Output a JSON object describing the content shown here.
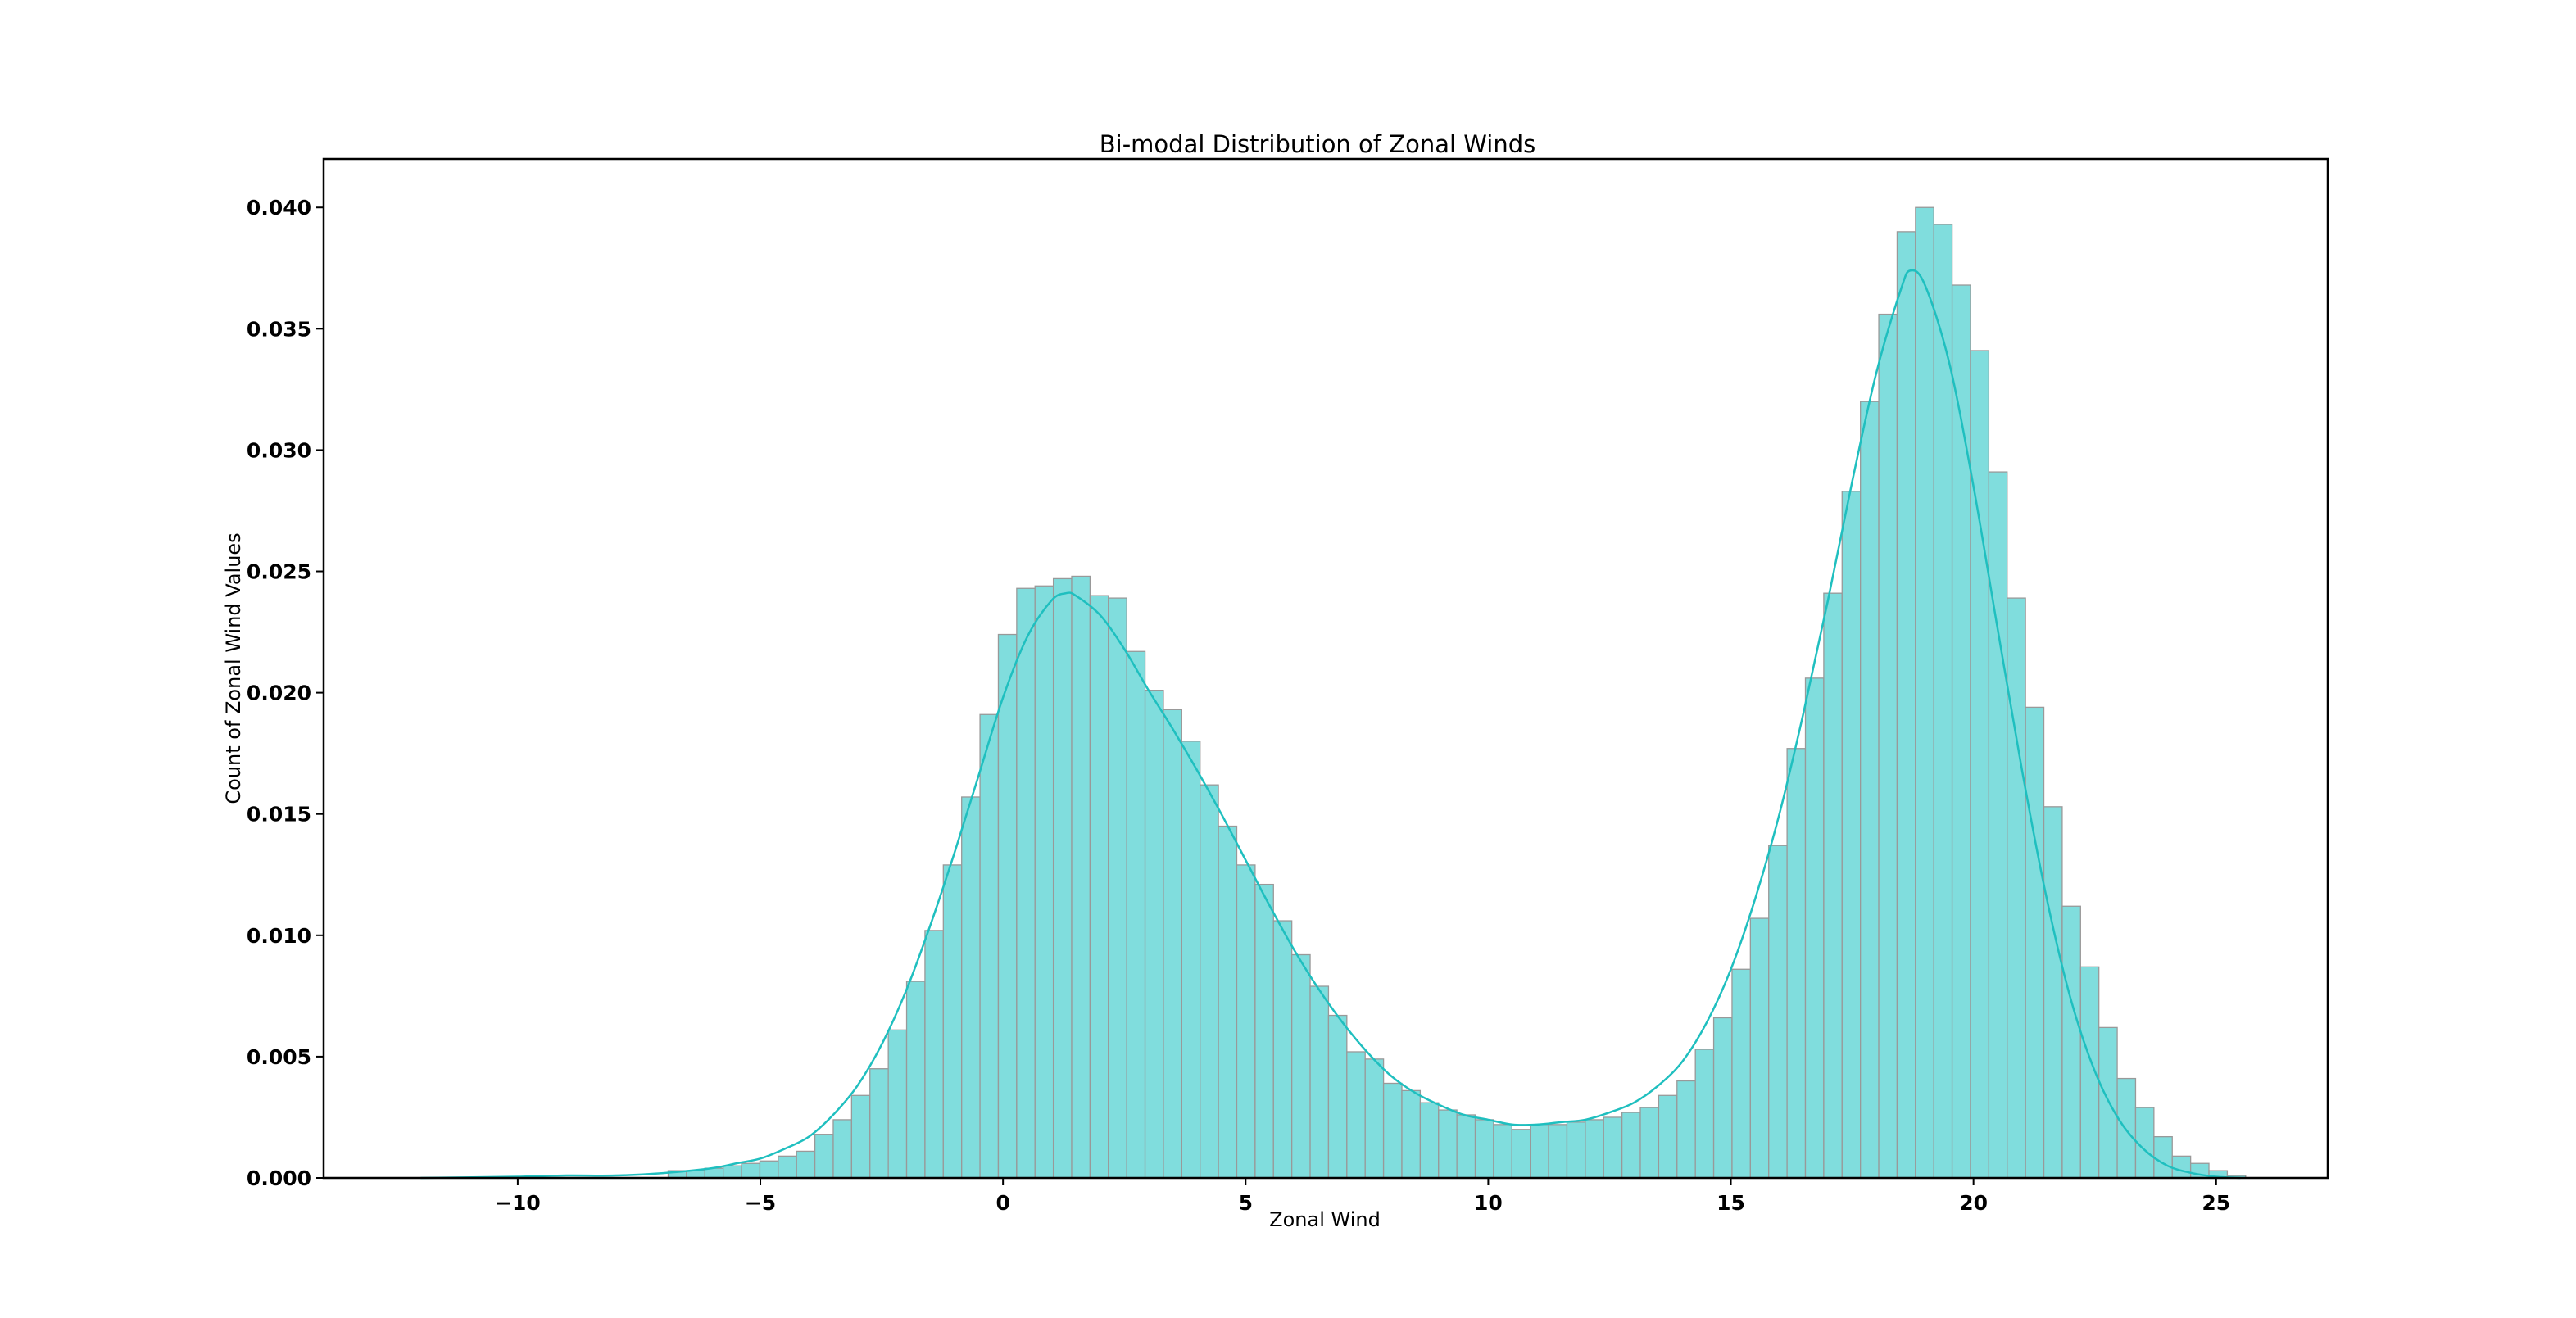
{
  "chart_data": {
    "type": "bar",
    "title": "Bi-modal Distribution of Zonal Winds",
    "xlabel": "Zonal Wind",
    "ylabel": "Count of Zonal Wind Values",
    "xlim": [
      -14.0,
      27.3
    ],
    "ylim": [
      0.0,
      0.042
    ],
    "xticks": [
      -10,
      -5,
      0,
      5,
      10,
      15,
      20,
      25
    ],
    "xtick_labels": [
      "−10",
      "−5",
      "0",
      "5",
      "10",
      "15",
      "20",
      "25"
    ],
    "yticks": [
      0.0,
      0.005,
      0.01,
      0.015,
      0.02,
      0.025,
      0.03,
      0.035,
      0.04
    ],
    "ytick_labels": [
      "0.000",
      "0.005",
      "0.010",
      "0.015",
      "0.020",
      "0.025",
      "0.030",
      "0.035",
      "0.040"
    ],
    "grid": false,
    "bin_start": -6.9,
    "bin_width": 0.378,
    "values": [
      0.0003,
      0.0003,
      0.0004,
      0.0005,
      0.0006,
      0.0007,
      0.0009,
      0.0011,
      0.0018,
      0.0024,
      0.0034,
      0.0045,
      0.0061,
      0.0081,
      0.0102,
      0.0129,
      0.0157,
      0.0191,
      0.0224,
      0.0243,
      0.0244,
      0.0247,
      0.0248,
      0.024,
      0.0239,
      0.0217,
      0.0201,
      0.0193,
      0.018,
      0.0162,
      0.0145,
      0.0129,
      0.0121,
      0.0106,
      0.0092,
      0.0079,
      0.0067,
      0.0052,
      0.0049,
      0.0039,
      0.0036,
      0.0031,
      0.0028,
      0.0026,
      0.0024,
      0.0022,
      0.002,
      0.0022,
      0.0022,
      0.0023,
      0.0024,
      0.0025,
      0.0027,
      0.0029,
      0.0034,
      0.004,
      0.0053,
      0.0066,
      0.0086,
      0.0107,
      0.0137,
      0.0177,
      0.0206,
      0.0241,
      0.0283,
      0.032,
      0.0356,
      0.039,
      0.04,
      0.0393,
      0.0368,
      0.0341,
      0.0291,
      0.0239,
      0.0194,
      0.0153,
      0.0112,
      0.0087,
      0.0062,
      0.0041,
      0.0029,
      0.0017,
      0.0009,
      0.0006,
      0.0003,
      0.0001
    ],
    "kde": {
      "x": [
        -12.0,
        -10.0,
        -9.0,
        -8.0,
        -7.0,
        -6.0,
        -5.5,
        -5.0,
        -4.5,
        -4.0,
        -3.5,
        -3.0,
        -2.5,
        -2.0,
        -1.5,
        -1.0,
        -0.5,
        0.0,
        0.5,
        1.0,
        1.3,
        1.5,
        2.0,
        2.5,
        3.0,
        3.5,
        4.0,
        4.5,
        5.0,
        5.5,
        6.0,
        6.5,
        7.0,
        7.5,
        8.0,
        8.5,
        9.0,
        9.5,
        10.0,
        10.5,
        11.0,
        11.5,
        12.0,
        12.5,
        13.0,
        13.5,
        14.0,
        14.5,
        15.0,
        15.5,
        16.0,
        16.5,
        17.0,
        17.5,
        18.0,
        18.5,
        18.7,
        19.0,
        19.5,
        20.0,
        20.5,
        21.0,
        21.5,
        22.0,
        22.5,
        23.0,
        23.5,
        24.0,
        24.5,
        25.0,
        25.5
      ],
      "y": [
        0.0,
        5e-05,
        0.0001,
        0.0001,
        0.0002,
        0.0004,
        0.0006,
        0.0008,
        0.0012,
        0.0017,
        0.0026,
        0.0038,
        0.0055,
        0.0077,
        0.0104,
        0.0134,
        0.0166,
        0.0198,
        0.0223,
        0.0238,
        0.0241,
        0.024,
        0.0232,
        0.0218,
        0.0201,
        0.0185,
        0.0168,
        0.015,
        0.0131,
        0.0112,
        0.0094,
        0.0078,
        0.0064,
        0.0052,
        0.0042,
        0.0035,
        0.003,
        0.0026,
        0.0024,
        0.0022,
        0.0022,
        0.0023,
        0.0024,
        0.0027,
        0.0031,
        0.0038,
        0.0048,
        0.0064,
        0.0086,
        0.0115,
        0.015,
        0.0192,
        0.0238,
        0.0287,
        0.0332,
        0.0366,
        0.0374,
        0.0368,
        0.0336,
        0.0285,
        0.0226,
        0.0168,
        0.0116,
        0.0074,
        0.0044,
        0.0024,
        0.0012,
        0.0005,
        0.0002,
        5e-05,
        0.0
      ]
    },
    "colors": {
      "bar_fill": "#80dddd",
      "bar_edge": "#999999",
      "kde_line": "#1fbfbf",
      "axes": "#000000"
    }
  }
}
